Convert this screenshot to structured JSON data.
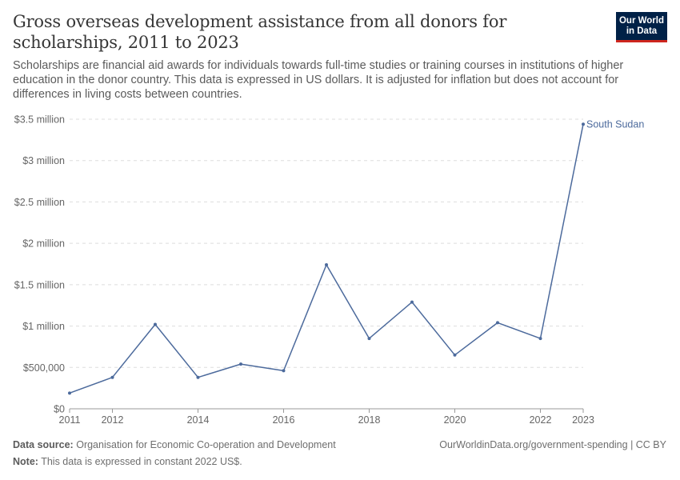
{
  "header": {
    "title": "Gross overseas development assistance from all donors for scholarships, 2011 to 2023",
    "subtitle": "Scholarships are financial aid awards for individuals towards full-time studies or training courses in institutions of higher education in the donor country. This data is expressed in US dollars. It is adjusted for inflation but does not account for differences in living costs between countries.",
    "logo_line1": "Our World",
    "logo_line2": "in Data"
  },
  "footer": {
    "source_label": "Data source:",
    "source_text": "Organisation for Economic Co-operation and Development",
    "note_label": "Note:",
    "note_text": "This data is expressed in constant 2022 US$.",
    "url_license": "OurWorldinData.org/government-spending | CC BY"
  },
  "colors": {
    "series": "#4c6a9c",
    "grid": "#dddddd",
    "axis_text": "#666666",
    "logo_bg": "#002147",
    "logo_accent": "#ce261e"
  },
  "chart_data": {
    "type": "line",
    "title": "Gross overseas development assistance from all donors for scholarships, 2011 to 2023",
    "xlabel": "",
    "ylabel": "",
    "xlim": [
      2011,
      2023
    ],
    "ylim": [
      0,
      3500000
    ],
    "x_ticks": [
      2011,
      2012,
      2014,
      2016,
      2018,
      2020,
      2022,
      2023
    ],
    "y_ticks": [
      {
        "value": 0,
        "label": "$0"
      },
      {
        "value": 500000,
        "label": "$500,000"
      },
      {
        "value": 1000000,
        "label": "$1 million"
      },
      {
        "value": 1500000,
        "label": "$1.5 million"
      },
      {
        "value": 2000000,
        "label": "$2 million"
      },
      {
        "value": 2500000,
        "label": "$2.5 million"
      },
      {
        "value": 3000000,
        "label": "$3 million"
      },
      {
        "value": 3500000,
        "label": "$3.5 million"
      }
    ],
    "grid": true,
    "legend": "end-of-line label",
    "series": [
      {
        "name": "South Sudan",
        "x": [
          2011,
          2012,
          2013,
          2014,
          2015,
          2016,
          2017,
          2018,
          2019,
          2020,
          2021,
          2022,
          2023
        ],
        "values": [
          190000,
          380000,
          1020000,
          380000,
          540000,
          460000,
          1740000,
          850000,
          1290000,
          650000,
          1040000,
          850000,
          3440000
        ]
      }
    ]
  }
}
